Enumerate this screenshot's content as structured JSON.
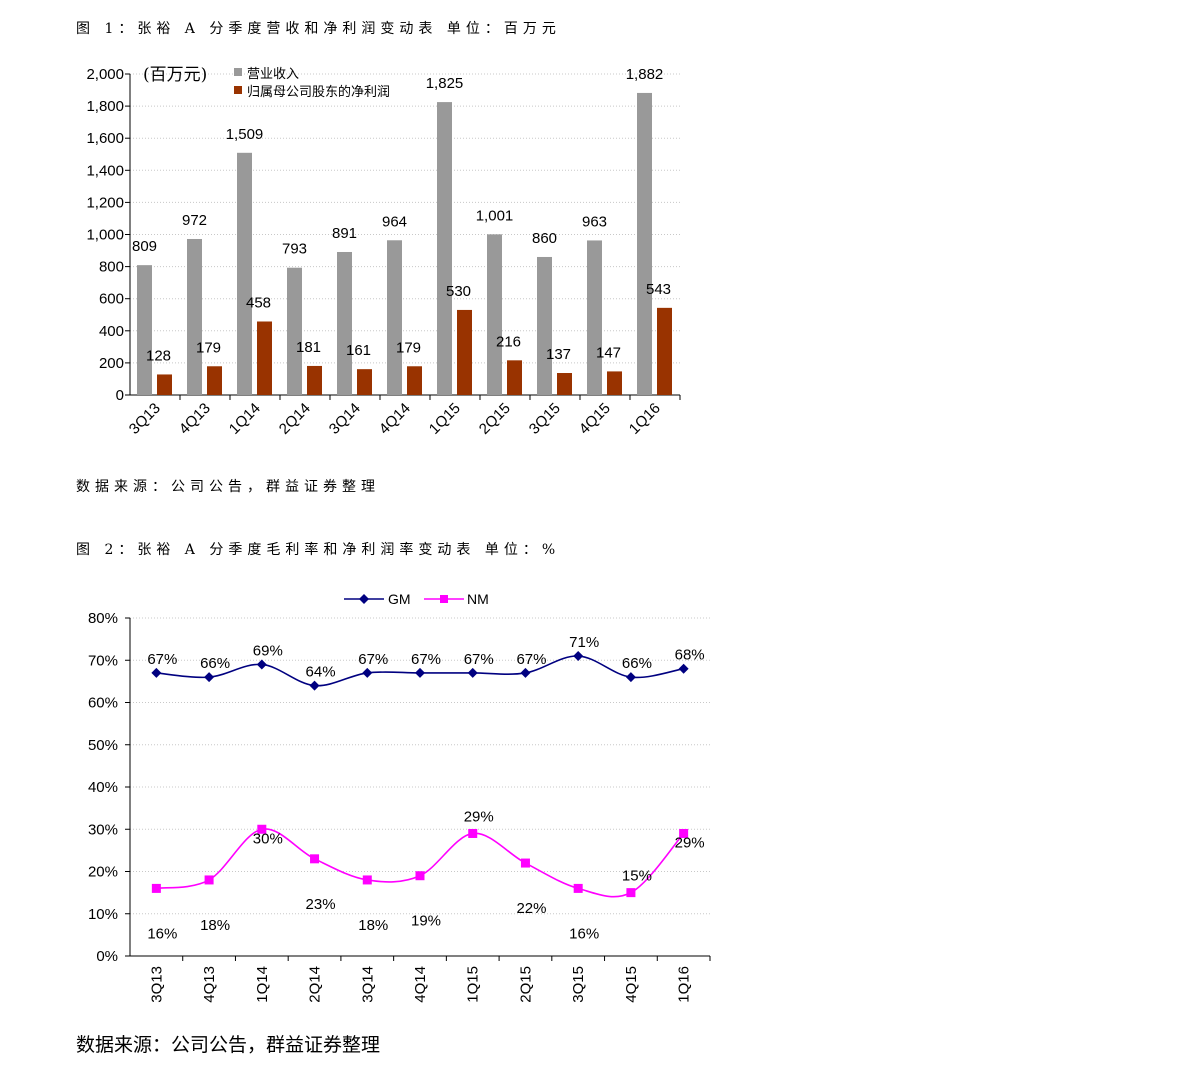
{
  "caption1": "图 1：张裕 A 分季度营收和净利润变动表  单位：百万元",
  "source1": "数据来源：公司公告，群益证券整理",
  "caption2": "图 2：张裕 A 分季度毛利率和净利润率变动表  单位：%",
  "source2": "数据来源：公司公告，群益证券整理",
  "chart_data": [
    {
      "type": "bar",
      "unit_note": "(百万元)",
      "categories": [
        "3Q13",
        "4Q13",
        "1Q14",
        "2Q14",
        "3Q14",
        "4Q14",
        "1Q15",
        "2Q15",
        "3Q15",
        "4Q15",
        "1Q16"
      ],
      "series": [
        {
          "name": "营业收入",
          "color": "#999999",
          "values": [
            809,
            972,
            1509,
            793,
            891,
            964,
            1825,
            1001,
            860,
            963,
            1882
          ]
        },
        {
          "name": "归属母公司股东的净利润",
          "color": "#993300",
          "values": [
            128,
            179,
            458,
            181,
            161,
            179,
            530,
            216,
            137,
            147,
            543
          ]
        }
      ],
      "data_labels": {
        "营业收入": [
          "809",
          "972",
          "1,509",
          "793",
          "891",
          "964",
          "1,825",
          "1,001",
          "860",
          "963",
          "1,882"
        ],
        "归属母公司股东的净利润": [
          "128",
          "179",
          "458",
          "181",
          "161",
          "179",
          "530",
          "216",
          "137",
          "147",
          "543"
        ]
      },
      "ylim": [
        0,
        2000
      ],
      "yticks": [
        "0",
        "200",
        "400",
        "600",
        "800",
        "1,000",
        "1,200",
        "1,400",
        "1,600",
        "1,800",
        "2,000"
      ],
      "grid": true,
      "legend_position": "top-left"
    },
    {
      "type": "line",
      "categories": [
        "3Q13",
        "4Q13",
        "1Q14",
        "2Q14",
        "3Q14",
        "4Q14",
        "1Q15",
        "2Q15",
        "3Q15",
        "4Q15",
        "1Q16"
      ],
      "series": [
        {
          "name": "GM",
          "color": "#000080",
          "marker": "diamond",
          "values": [
            67,
            66,
            69,
            64,
            67,
            67,
            67,
            67,
            71,
            66,
            68
          ],
          "labels": [
            "67%",
            "66%",
            "69%",
            "64%",
            "67%",
            "67%",
            "67%",
            "67%",
            "71%",
            "66%",
            "68%"
          ]
        },
        {
          "name": "NM",
          "color": "#FF00FF",
          "marker": "square",
          "values": [
            16,
            18,
            30,
            23,
            18,
            19,
            29,
            22,
            16,
            15,
            29
          ],
          "labels": [
            "16%",
            "18%",
            "30%",
            "23%",
            "18%",
            "19%",
            "29%",
            "22%",
            "16%",
            "15%",
            "29%"
          ]
        }
      ],
      "ylim": [
        0,
        80
      ],
      "yticks": [
        "0%",
        "10%",
        "20%",
        "30%",
        "40%",
        "50%",
        "60%",
        "70%",
        "80%"
      ],
      "grid": true,
      "legend_position": "top-center"
    }
  ]
}
